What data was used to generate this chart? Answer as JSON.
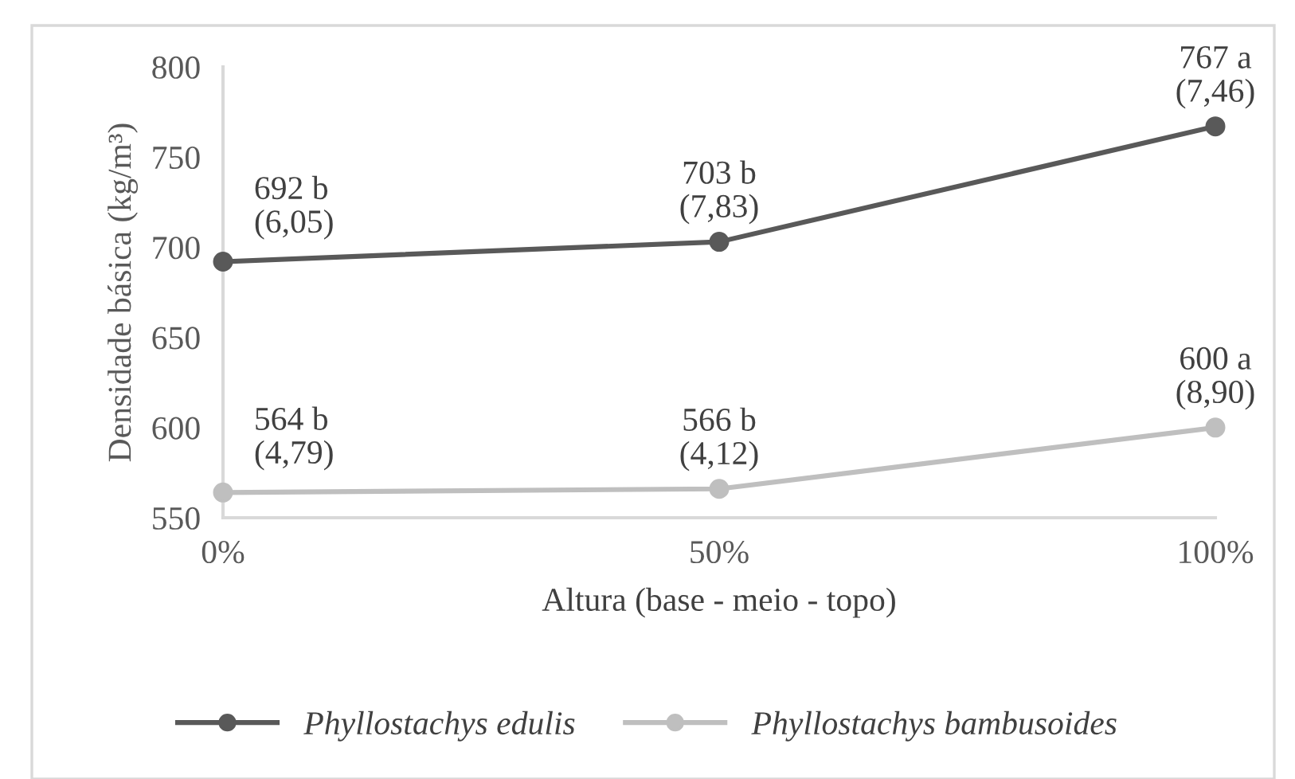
{
  "chart_data": {
    "type": "line",
    "xlabel": "Altura (base - meio - topo)",
    "ylabel": "Densidade básica (kg/m³)",
    "categories": [
      "0%",
      "50%",
      "100%"
    ],
    "series": [
      {
        "name": "Phyllostachys edulis",
        "color": "#595959",
        "values": [
          692,
          703,
          767
        ],
        "value_labels": [
          "692 b\n(6,05)",
          "703 b\n(7,83)",
          "767 a\n(7,46)"
        ]
      },
      {
        "name": "Phyllostachys bambusoides",
        "color": "#bfbfbf",
        "values": [
          564,
          566,
          600
        ],
        "value_labels": [
          "564 b\n(4,79)",
          "566 b\n(4,12)",
          "600 a\n(8,90)"
        ]
      }
    ],
    "ylim": [
      550,
      800
    ],
    "yticks": [
      550,
      600,
      650,
      700,
      750,
      800
    ],
    "grid": false,
    "legend": "bottom",
    "marker": "circle",
    "line_style": "solid"
  }
}
